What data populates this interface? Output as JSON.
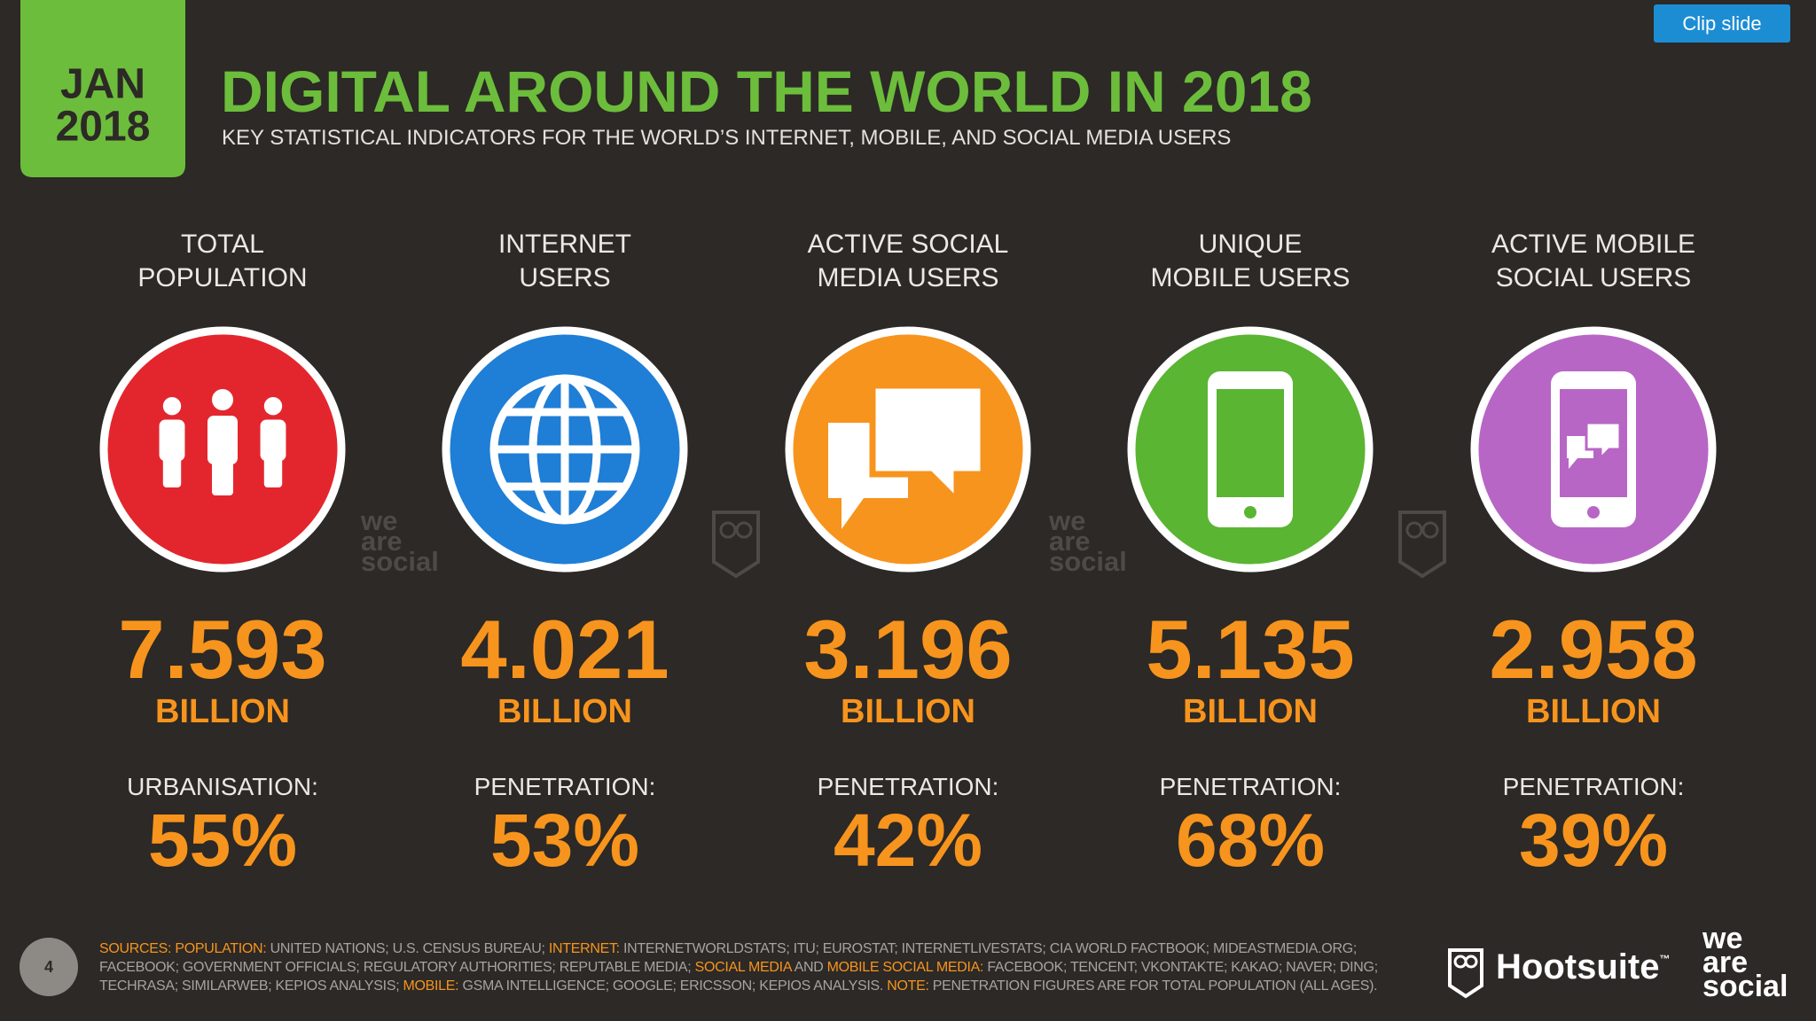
{
  "header": {
    "badge": [
      "JAN",
      "2018"
    ],
    "title": "DIGITAL AROUND THE WORLD IN 2018",
    "subtitle": "KEY STATISTICAL INDICATORS FOR THE WORLD’S INTERNET, MOBILE, AND SOCIAL MEDIA USERS"
  },
  "toolbar": {
    "button": "Clip slide"
  },
  "stats": [
    {
      "heading": [
        "TOTAL",
        "POPULATION"
      ],
      "value": "7.593",
      "unit": "BILLION",
      "metric_label": "URBANISATION:",
      "metric_value": "55%",
      "color": "#e3262d"
    },
    {
      "heading": [
        "INTERNET",
        "USERS"
      ],
      "value": "4.021",
      "unit": "BILLION",
      "metric_label": "PENETRATION:",
      "metric_value": "53%",
      "color": "#1f7ed6"
    },
    {
      "heading": [
        "ACTIVE SOCIAL",
        "MEDIA USERS"
      ],
      "value": "3.196",
      "unit": "BILLION",
      "metric_label": "PENETRATION:",
      "metric_value": "42%",
      "color": "#f7941d"
    },
    {
      "heading": [
        "UNIQUE",
        "MOBILE USERS"
      ],
      "value": "5.135",
      "unit": "BILLION",
      "metric_label": "PENETRATION:",
      "metric_value": "68%",
      "color": "#5ab532"
    },
    {
      "heading": [
        "ACTIVE MOBILE",
        "SOCIAL USERS"
      ],
      "value": "2.958",
      "unit": "BILLION",
      "metric_label": "PENETRATION:",
      "metric_value": "39%",
      "color": "#b866c6"
    }
  ],
  "footer": {
    "page_number": "4",
    "sources": [
      {
        "text": "SOURCES: ",
        "highlight": true
      },
      {
        "text": "POPULATION:",
        "highlight": true
      },
      {
        "text": " UNITED NATIONS; U.S. CENSUS BUREAU; ",
        "highlight": false
      },
      {
        "text": "INTERNET:",
        "highlight": true
      },
      {
        "text": " INTERNETWORLDSTATS; ITU; EUROSTAT; INTERNETLIVESTATS; CIA WORLD FACTBOOK; MIDEASTMEDIA.ORG; FACEBOOK; GOVERNMENT OFFICIALS; REGULATORY AUTHORITIES; REPUTABLE MEDIA; ",
        "highlight": false
      },
      {
        "text": "SOCIAL MEDIA",
        "highlight": true
      },
      {
        "text": " AND ",
        "highlight": false
      },
      {
        "text": "MOBILE SOCIAL MEDIA:",
        "highlight": true
      },
      {
        "text": " FACEBOOK; TENCENT; VKONTAKTE; KAKAO; NAVER; DING; TECHRASA; SIMILARWEB; KEPIOS ANALYSIS; ",
        "highlight": false
      },
      {
        "text": "MOBILE:",
        "highlight": true
      },
      {
        "text": " GSMA INTELLIGENCE; GOOGLE; ERICSSON; KEPIOS ANALYSIS. ",
        "highlight": false
      },
      {
        "text": "NOTE:",
        "highlight": true
      },
      {
        "text": " PENETRATION FIGURES ARE FOR TOTAL POPULATION (ALL AGES).",
        "highlight": false
      }
    ],
    "brand": "Hootsuite",
    "brand_mark": "™",
    "we_are_social": [
      "we",
      "are",
      "social"
    ]
  }
}
